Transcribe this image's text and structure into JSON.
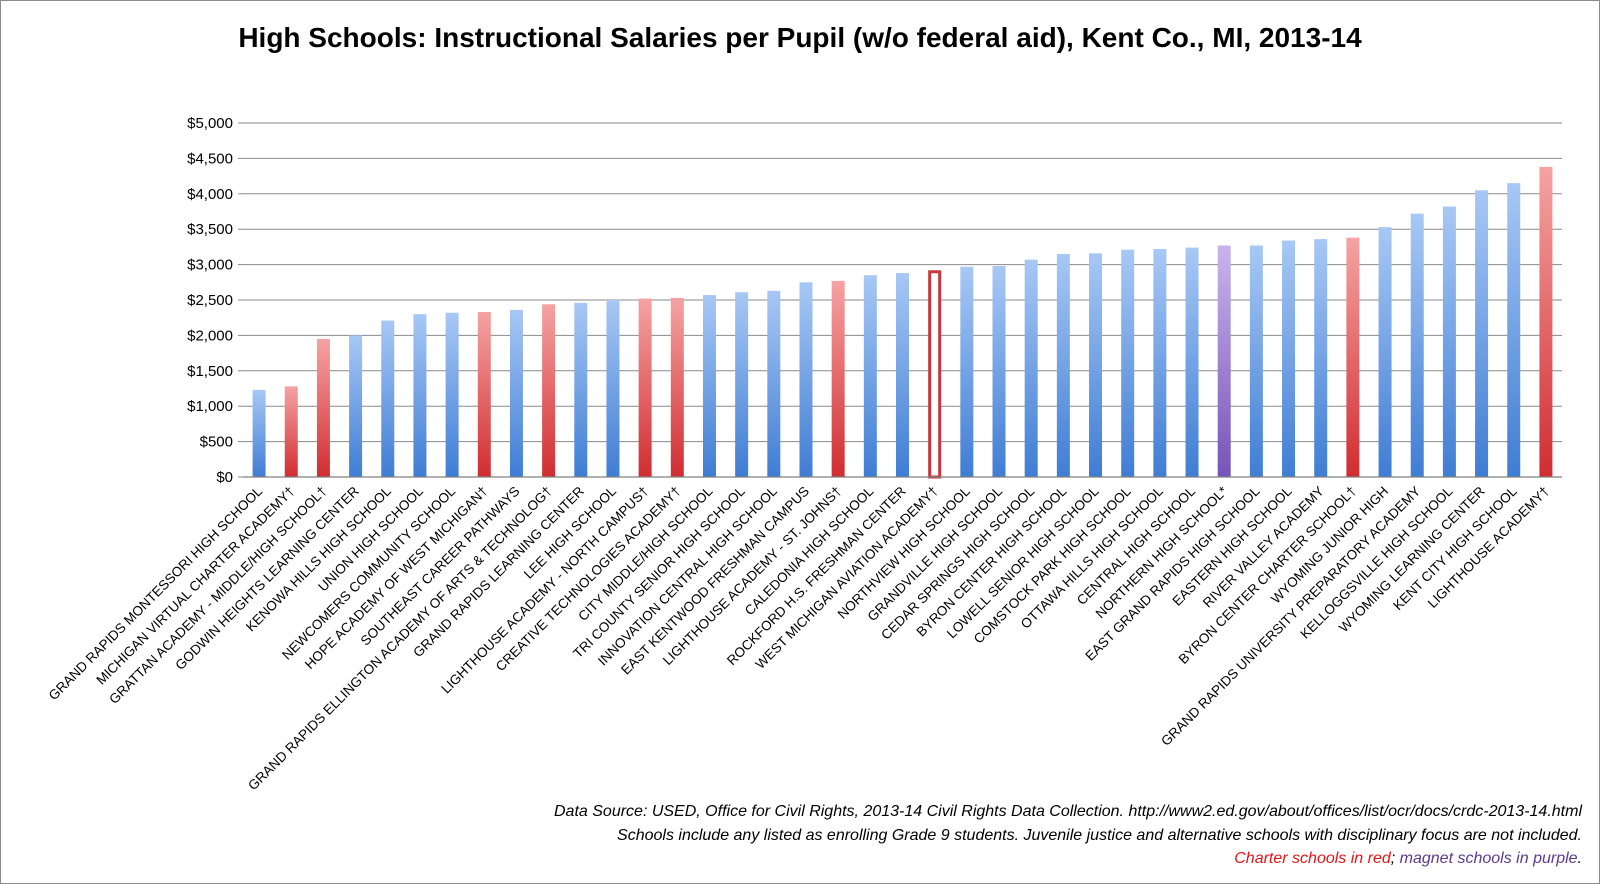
{
  "chart_data": {
    "type": "bar",
    "title": "High Schools: Instructional Salaries per Pupil (w/o federal aid), Kent Co., MI, 2013-14",
    "xlabel": "",
    "ylabel": "",
    "ylim": [
      0,
      5000
    ],
    "y_ticks": [
      "$0",
      "$500",
      "$1,000",
      "$1,500",
      "$2,000",
      "$2,500",
      "$3,000",
      "$3,500",
      "$4,000",
      "$4,500",
      "$5,000"
    ],
    "y_tick_values": [
      0,
      500,
      1000,
      1500,
      2000,
      2500,
      3000,
      3500,
      4000,
      4500,
      5000
    ],
    "grid": true,
    "legend": "none",
    "colors": {
      "regular": "#4a86d8",
      "charter": "#d8393d",
      "magnet": "#7e5cc0"
    },
    "categories": [
      "GRAND RAPIDS MONTESSORI HIGH SCHOOL",
      "MICHIGAN VIRTUAL CHARTER ACADEMY†",
      "GRATTAN ACADEMY - MIDDLE/HIGH SCHOOL†",
      "GODWIN HEIGHTS LEARNING CENTER",
      "KENOWA HILLS HIGH SCHOOL",
      "UNION HIGH SCHOOL",
      "NEWCOMERS COMMUNITY SCHOOL",
      "HOPE ACADEMY OF WEST MICHIGAN†",
      "SOUTHEAST CAREER PATHWAYS",
      "GRAND RAPIDS ELLINGTON ACADEMY OF ARTS & TECHNOLOG†",
      "GRAND RAPIDS LEARNING CENTER",
      "LEE HIGH SCHOOL",
      "LIGHTHOUSE ACADEMY - NORTH CAMPUS†",
      "CREATIVE TECHNOLOGIES ACADEMY†",
      "CITY MIDDLE/HIGH SCHOOL",
      "TRI COUNTY SENIOR HIGH SCHOOL",
      "INNOVATION CENTRAL HIGH SCHOOL",
      "EAST KENTWOOD FRESHMAN CAMPUS",
      "LIGHTHOUSE ACADEMY - ST. JOHNS†",
      "CALEDONIA HIGH SCHOOL",
      "ROCKFORD H.S. FRESHMAN CENTER",
      "WEST MICHIGAN AVIATION ACADEMY†",
      "NORTHVIEW HIGH SCHOOL",
      "GRANDVILLE HIGH SCHOOL",
      "CEDAR SPRINGS HIGH SCHOOL",
      "BYRON CENTER HIGH SCHOOL",
      "LOWELL SENIOR HIGH SCHOOL",
      "COMSTOCK PARK HIGH SCHOOL",
      "OTTAWA HILLS HIGH SCHOOL",
      "CENTRAL HIGH SCHOOL",
      "NORTHERN HIGH SCHOOL*",
      "EAST GRAND RAPIDS HIGH SCHOOL",
      "EASTERN HIGH SCHOOL",
      "RIVER VALLEY ACADEMY",
      "BYRON CENTER CHARTER SCHOOL†",
      "WYOMING JUNIOR HIGH",
      "GRAND RAPIDS UNIVERSITY PREPARATORY ACADEMY",
      "KELLOGGSVILLE HIGH SCHOOL",
      "WYOMING LEARNING CENTER",
      "KENT CITY HIGH SCHOOL",
      "LIGHTHOUSE ACADEMY†"
    ],
    "values": [
      1230,
      1280,
      1950,
      2000,
      2210,
      2300,
      2320,
      2330,
      2360,
      2440,
      2460,
      2500,
      2520,
      2530,
      2570,
      2610,
      2630,
      2750,
      2770,
      2850,
      2880,
      2920,
      2970,
      2980,
      3070,
      3150,
      3160,
      3210,
      3220,
      3240,
      3270,
      3270,
      3340,
      3360,
      3380,
      3530,
      3720,
      3820,
      4050,
      4150,
      4380
    ],
    "kinds": [
      "regular",
      "charter",
      "charter",
      "regular",
      "regular",
      "regular",
      "regular",
      "charter",
      "regular",
      "charter",
      "regular",
      "regular",
      "charter",
      "charter",
      "regular",
      "regular",
      "regular",
      "regular",
      "charter",
      "regular",
      "regular",
      "charter-outline",
      "regular",
      "regular",
      "regular",
      "regular",
      "regular",
      "regular",
      "regular",
      "regular",
      "magnet",
      "regular",
      "regular",
      "regular",
      "charter",
      "regular",
      "regular",
      "regular",
      "regular",
      "regular",
      "charter"
    ]
  },
  "notes": {
    "source": "Data Source: USED, Office for Civil Rights, 2013-14 Civil Rights Data Collection. http://www2.ed.gov/about/offices/list/ocr/docs/crdc-2013-14.html",
    "scope": "Schools include any listed as enrolling Grade 9 students. Juvenile justice and alternative schools with disciplinary focus are not included.",
    "legend_charter": "Charter schools in red",
    "legend_sep": "; ",
    "legend_magnet": "magnet schools in purple",
    "legend_end": "."
  }
}
